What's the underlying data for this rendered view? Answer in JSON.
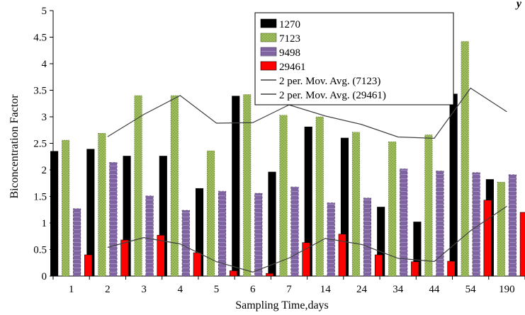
{
  "chart_data": {
    "type": "bar",
    "title": "",
    "xlabel": "Sampling Time,days",
    "ylabel": "Biconcentration Factor",
    "ylim": [
      0,
      5
    ],
    "yticks": [
      "0",
      "0.5",
      "1",
      "1.5",
      "2",
      "2.5",
      "3",
      "3.5",
      "4",
      "4.5",
      "5"
    ],
    "categories": [
      "1",
      "2",
      "3",
      "4",
      "5",
      "6",
      "7",
      "14",
      "24",
      "34",
      "44",
      "54",
      "190"
    ],
    "grid": false,
    "legend_position": "top-right",
    "series": [
      {
        "name": "1270",
        "color": "#000000",
        "pattern": "solid",
        "values": [
          2.35,
          2.39,
          2.26,
          2.26,
          1.65,
          3.39,
          1.96,
          2.81,
          2.6,
          1.3,
          1.02,
          3.43,
          1.82
        ]
      },
      {
        "name": "7123",
        "color": "#9bbb59",
        "pattern": "dotted",
        "values": [
          2.56,
          2.69,
          3.4,
          3.4,
          2.36,
          3.42,
          3.03,
          3.0,
          2.71,
          2.53,
          2.66,
          4.42,
          1.77
        ]
      },
      {
        "name": "9498",
        "color": "#8064a2",
        "pattern": "dashed",
        "values": [
          1.27,
          2.14,
          1.51,
          1.24,
          1.6,
          1.56,
          1.68,
          1.38,
          1.47,
          2.02,
          1.98,
          1.95,
          1.91
        ]
      },
      {
        "name": "29461",
        "color": "#ff0000",
        "pattern": "solid",
        "values": [
          0.4,
          0.68,
          0.77,
          0.44,
          0.1,
          0.05,
          0.63,
          0.79,
          0.4,
          0.27,
          0.28,
          1.43,
          1.2
        ]
      }
    ],
    "trendlines": [
      {
        "name": "2 per. Mov. Avg. (7123)",
        "color": "#404040",
        "values": [
          null,
          2.625,
          3.045,
          3.4,
          2.88,
          2.89,
          3.225,
          3.015,
          2.855,
          2.62,
          2.595,
          3.54,
          3.095
        ]
      },
      {
        "name": "2 per. Mov. Avg. (29461)",
        "color": "#404040",
        "values": [
          null,
          0.54,
          0.725,
          0.605,
          0.27,
          0.075,
          0.34,
          0.71,
          0.595,
          0.335,
          0.275,
          0.855,
          1.315
        ]
      }
    ]
  },
  "header_fragment": "y"
}
